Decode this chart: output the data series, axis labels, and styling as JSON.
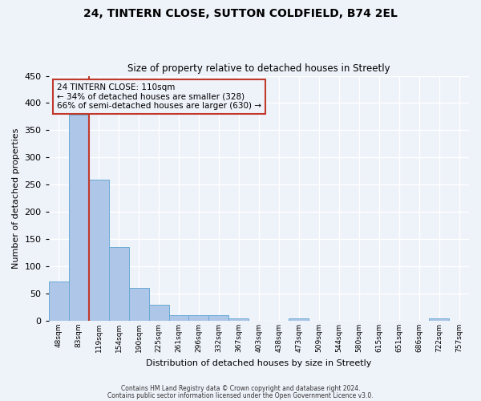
{
  "title": "24, TINTERN CLOSE, SUTTON COLDFIELD, B74 2EL",
  "subtitle": "Size of property relative to detached houses in Streetly",
  "xlabel": "Distribution of detached houses by size in Streetly",
  "ylabel": "Number of detached properties",
  "bar_labels": [
    "48sqm",
    "83sqm",
    "119sqm",
    "154sqm",
    "190sqm",
    "225sqm",
    "261sqm",
    "296sqm",
    "332sqm",
    "367sqm",
    "403sqm",
    "438sqm",
    "473sqm",
    "509sqm",
    "544sqm",
    "580sqm",
    "615sqm",
    "651sqm",
    "686sqm",
    "722sqm",
    "757sqm"
  ],
  "bar_values": [
    72,
    378,
    260,
    136,
    60,
    30,
    10,
    10,
    10,
    5,
    0,
    0,
    4,
    0,
    0,
    0,
    0,
    0,
    0,
    4,
    0
  ],
  "bar_color": "#aec6e8",
  "bar_edge_color": "#6aaad4",
  "ylim": [
    0,
    450
  ],
  "yticks": [
    0,
    50,
    100,
    150,
    200,
    250,
    300,
    350,
    400,
    450
  ],
  "property_line_color": "#c0392b",
  "annotation_title": "24 TINTERN CLOSE: 110sqm",
  "annotation_line1": "← 34% of detached houses are smaller (328)",
  "annotation_line2": "66% of semi-detached houses are larger (630) →",
  "annotation_box_color": "#c0392b",
  "footer1": "Contains HM Land Registry data © Crown copyright and database right 2024.",
  "footer2": "Contains public sector information licensed under the Open Government Licence v3.0.",
  "background_color": "#eef2f9",
  "grid_color": "#ffffff"
}
